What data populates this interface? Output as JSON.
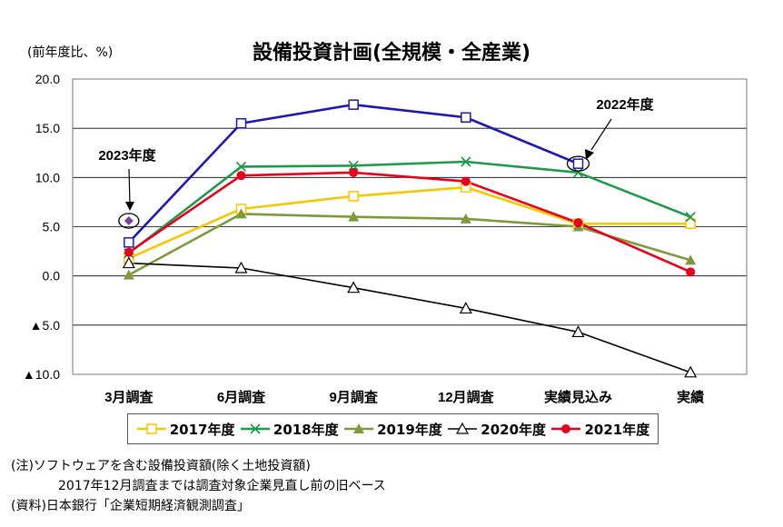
{
  "title": "設備投資計画(全規模・全産業)",
  "unit": "(前年度比、%)",
  "callouts": {
    "fy2023": "2023年度",
    "fy2022": "2022年度"
  },
  "notes": [
    "(注)ソフトウェアを含む設備投資額(除く土地投資額)",
    "2017年12月調査までは調査対象企業見直し前の旧ベース",
    "(資料)日本銀行「企業短期経済観測調査」"
  ],
  "chart_data": {
    "type": "line",
    "title": "設備投資計画(全規模・全産業)",
    "ylabel": "(前年度比、%)",
    "categories": [
      "3月調査",
      "6月調査",
      "9月調査",
      "12月調査",
      "実績見込み",
      "実績"
    ],
    "ylim": [
      -10,
      20
    ],
    "yticks": [
      -10,
      -5,
      0,
      5,
      10,
      15,
      20
    ],
    "ytick_labels": [
      "▲10.0",
      "▲5.0",
      "0.0",
      "5.0",
      "10.0",
      "15.0",
      "20.0"
    ],
    "grid": true,
    "legend": "bottom",
    "series": [
      {
        "name": "2017年度",
        "color": "#f5c800",
        "marker": "square",
        "values": [
          1.8,
          6.8,
          8.1,
          9.0,
          5.3,
          5.3
        ]
      },
      {
        "name": "2018年度",
        "color": "#1e9a4b",
        "marker": "x",
        "values": [
          2.3,
          11.1,
          11.2,
          11.6,
          10.5,
          6.0
        ]
      },
      {
        "name": "2019年度",
        "color": "#7f9a3a",
        "marker": "triangle-filled",
        "values": [
          0.1,
          6.3,
          6.0,
          5.8,
          5.0,
          1.6
        ]
      },
      {
        "name": "2020年度",
        "color": "#000000",
        "marker": "triangle-open",
        "values": [
          1.3,
          0.8,
          -1.2,
          -3.3,
          -5.7,
          -9.8
        ]
      },
      {
        "name": "2021年度",
        "color": "#e8001c",
        "marker": "circle",
        "values": [
          2.4,
          10.2,
          10.5,
          9.6,
          5.4,
          0.4
        ]
      },
      {
        "name": "2022年度",
        "color": "#1c1ab0",
        "marker": "square",
        "values": [
          3.4,
          15.5,
          17.4,
          16.1,
          11.4,
          null
        ]
      },
      {
        "name": "2023年度",
        "color": "#7a3fa0",
        "marker": "diamond",
        "values": [
          5.6,
          null,
          null,
          null,
          null,
          null
        ]
      }
    ]
  }
}
